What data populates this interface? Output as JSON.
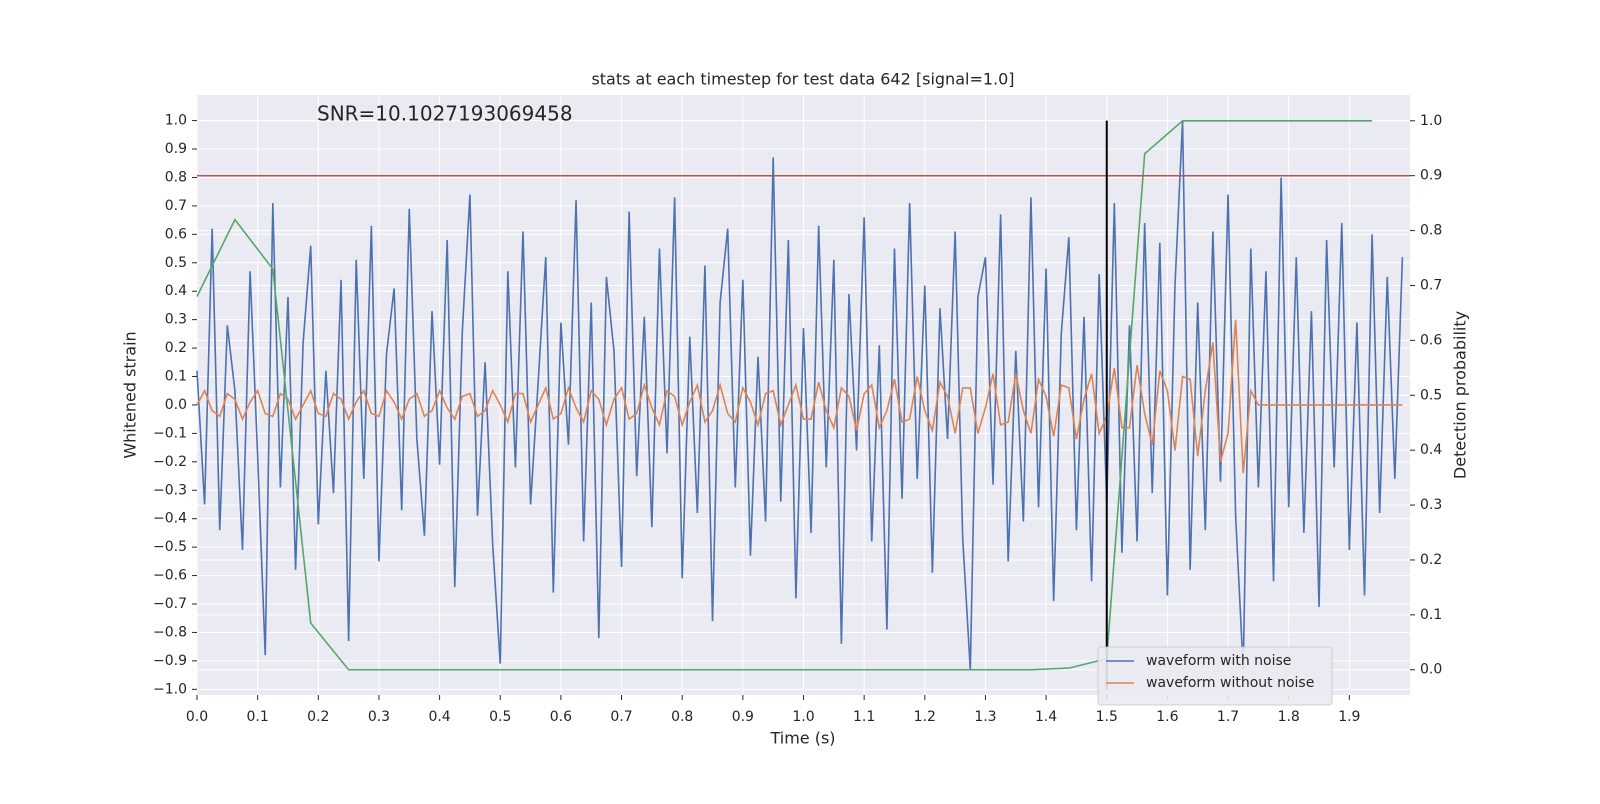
{
  "chart_data": {
    "type": "line",
    "title": "stats at each timestep for test data 642 [signal=1.0]",
    "annotation": "SNR=10.1027193069458",
    "xlabel": "Time (s)",
    "ylabel": "Whitened strain",
    "y2label": "Detection probability",
    "xlim": [
      0,
      2.0
    ],
    "ylim": [
      -1.02,
      1.09
    ],
    "y2lim": [
      -0.046,
      1.047
    ],
    "xticks": [
      {
        "value": 0,
        "label": "0.0"
      },
      0.1,
      0.2,
      0.3,
      0.4,
      0.5,
      0.6,
      0.7,
      0.8,
      0.9,
      {
        "value": 1,
        "label": "1.0"
      },
      1.1,
      1.2,
      1.3,
      1.4,
      1.5,
      1.6,
      1.7,
      1.8,
      1.9
    ],
    "yticks": [
      {
        "value": -1,
        "label": "−1.0"
      },
      {
        "value": -0.9,
        "label": "−0.9"
      },
      {
        "value": -0.8,
        "label": "−0.8"
      },
      {
        "value": -0.7,
        "label": "−0.7"
      },
      {
        "value": -0.6,
        "label": "−0.6"
      },
      {
        "value": -0.5,
        "label": "−0.5"
      },
      {
        "value": -0.4,
        "label": "−0.4"
      },
      {
        "value": -0.3,
        "label": "−0.3"
      },
      {
        "value": -0.2,
        "label": "−0.2"
      },
      {
        "value": -0.1,
        "label": "−0.1"
      },
      {
        "value": 0,
        "label": "0.0"
      },
      0.1,
      0.2,
      0.3,
      0.4,
      0.5,
      0.6,
      0.7,
      0.8,
      0.9,
      {
        "value": 1,
        "label": "1.0"
      }
    ],
    "y2ticks": [
      {
        "value": 0,
        "label": "0.0"
      },
      0.1,
      0.2,
      0.3,
      0.4,
      0.5,
      0.6,
      0.7,
      0.8,
      0.9,
      {
        "value": 1,
        "label": "1.0"
      }
    ],
    "grid": true,
    "legend": "lower right",
    "threshold": {
      "value": 0.9,
      "axis": "y2",
      "color": "#c44e52"
    },
    "vline": {
      "x": 1.5,
      "ymin": -1,
      "ymax": 1,
      "color": "#000000"
    },
    "x": [
      0,
      0.0125,
      0.025,
      0.0375,
      0.05,
      0.0625,
      0.075,
      0.0875,
      0.1,
      0.1125,
      0.125,
      0.1375,
      0.15,
      0.1625,
      0.175,
      0.1875,
      0.2,
      0.2125,
      0.225,
      0.2375,
      0.25,
      0.2625,
      0.275,
      0.2875,
      0.3,
      0.3125,
      0.325,
      0.3375,
      0.35,
      0.3625,
      0.375,
      0.3875,
      0.4,
      0.4125,
      0.425,
      0.4375,
      0.45,
      0.4625,
      0.475,
      0.4875,
      0.5,
      0.5125,
      0.525,
      0.5375,
      0.55,
      0.5625,
      0.575,
      0.5875,
      0.6,
      0.6125,
      0.625,
      0.6375,
      0.65,
      0.6625,
      0.675,
      0.6875,
      0.7,
      0.7125,
      0.725,
      0.7375,
      0.75,
      0.7625,
      0.775,
      0.7875,
      0.8,
      0.8125,
      0.825,
      0.8375,
      0.85,
      0.8625,
      0.875,
      0.8875,
      0.9,
      0.9125,
      0.925,
      0.9375,
      0.95,
      0.9625,
      0.975,
      0.9875,
      1,
      1.0125,
      1.025,
      1.0375,
      1.05,
      1.0625,
      1.075,
      1.0875,
      1.1,
      1.1125,
      1.125,
      1.1375,
      1.15,
      1.1625,
      1.175,
      1.1875,
      1.2,
      1.2125,
      1.225,
      1.2375,
      1.25,
      1.2625,
      1.275,
      1.2875,
      1.3,
      1.3125,
      1.325,
      1.3375,
      1.35,
      1.3625,
      1.375,
      1.3875,
      1.4,
      1.4125,
      1.425,
      1.4375,
      1.45,
      1.4625,
      1.475,
      1.4875,
      1.5,
      1.5125,
      1.525,
      1.5375,
      1.55,
      1.5625,
      1.575,
      1.5875,
      1.6,
      1.6125,
      1.625,
      1.6375,
      1.65,
      1.6625,
      1.675,
      1.6875,
      1.7,
      1.7125,
      1.725,
      1.7375,
      1.75,
      1.7625,
      1.775,
      1.7875,
      1.8,
      1.8125,
      1.825,
      1.8375,
      1.85,
      1.8625,
      1.875,
      1.8875,
      1.9,
      1.9125,
      1.925,
      1.9375,
      1.95,
      1.9625,
      1.975,
      1.9875
    ],
    "series": [
      {
        "name": "waveform with noise",
        "color": "#4c72b0",
        "values": [
          0.12,
          -0.35,
          0.62,
          -0.44,
          0.28,
          0.05,
          -0.51,
          0.47,
          -0.18,
          -0.88,
          0.71,
          -0.29,
          0.38,
          -0.58,
          0.22,
          0.56,
          -0.42,
          0.12,
          -0.31,
          0.44,
          -0.83,
          0.51,
          -0.26,
          0.63,
          -0.55,
          0.18,
          0.41,
          -0.37,
          0.69,
          -0.12,
          -0.46,
          0.33,
          -0.21,
          0.58,
          -0.64,
          0.26,
          0.74,
          -0.39,
          0.15,
          -0.49,
          -0.91,
          0.47,
          -0.22,
          0.61,
          -0.35,
          0.08,
          0.52,
          -0.66,
          0.29,
          -0.14,
          0.72,
          -0.48,
          0.36,
          -0.82,
          0.45,
          0.19,
          -0.57,
          0.68,
          -0.25,
          0.31,
          -0.43,
          0.55,
          -0.17,
          0.73,
          -0.61,
          0.24,
          -0.38,
          0.49,
          -0.76,
          0.36,
          0.62,
          -0.29,
          0.44,
          -0.53,
          0.17,
          -0.41,
          0.87,
          -0.34,
          0.58,
          -0.68,
          0.27,
          -0.45,
          0.63,
          -0.22,
          0.51,
          -0.84,
          0.39,
          -0.16,
          0.66,
          -0.48,
          0.21,
          -0.79,
          0.55,
          -0.33,
          0.71,
          -0.26,
          0.42,
          -0.59,
          0.34,
          -0.12,
          0.61,
          -0.47,
          -0.93,
          0.38,
          0.52,
          -0.28,
          0.67,
          -0.55,
          0.19,
          -0.41,
          0.73,
          -0.36,
          0.48,
          -0.69,
          0.25,
          0.59,
          -0.44,
          0.31,
          -0.62,
          0.46,
          -0.35,
          0.71,
          -0.52,
          0.28,
          -0.48,
          0.64,
          -0.31,
          0.57,
          -0.67,
          0.42,
          1.0,
          -0.58,
          0.36,
          -0.44,
          0.61,
          -0.27,
          0.74,
          -0.39,
          -0.93,
          0.55,
          -0.29,
          0.47,
          -0.62,
          0.8,
          -0.36,
          0.52,
          -0.45,
          0.33,
          -0.71,
          0.58,
          -0.22,
          0.64,
          -0.51,
          0.29,
          -0.67,
          0.6,
          -0.38,
          0.45,
          -0.26,
          0.52
        ]
      },
      {
        "name": "waveform without noise",
        "color": "#dd8452",
        "values": [
          0.0,
          0.05,
          -0.02,
          -0.04,
          0.04,
          0.02,
          -0.05,
          0.01,
          0.05,
          -0.03,
          -0.04,
          0.04,
          0.02,
          -0.05,
          0.0,
          0.05,
          -0.03,
          -0.04,
          0.04,
          0.02,
          -0.05,
          0.01,
          0.05,
          -0.03,
          -0.04,
          0.05,
          0.01,
          -0.05,
          0.02,
          0.04,
          -0.04,
          -0.02,
          0.05,
          -0.01,
          -0.05,
          0.03,
          0.04,
          -0.04,
          -0.02,
          0.05,
          0.0,
          -0.06,
          0.04,
          0.04,
          -0.06,
          0.0,
          0.06,
          -0.05,
          -0.03,
          0.06,
          -0.01,
          -0.06,
          0.05,
          0.02,
          -0.07,
          0.02,
          0.06,
          -0.05,
          -0.03,
          0.07,
          -0.01,
          -0.07,
          0.05,
          0.03,
          -0.07,
          0.01,
          0.07,
          -0.06,
          -0.02,
          0.07,
          -0.03,
          -0.06,
          0.06,
          0.01,
          -0.07,
          0.04,
          0.05,
          -0.07,
          0.0,
          0.07,
          -0.05,
          -0.05,
          0.08,
          -0.02,
          -0.08,
          0.06,
          0.03,
          -0.09,
          0.04,
          0.07,
          -0.08,
          -0.02,
          0.09,
          -0.06,
          -0.05,
          0.1,
          -0.02,
          -0.09,
          0.08,
          0.03,
          -0.1,
          0.06,
          0.06,
          -0.1,
          -0.01,
          0.11,
          -0.07,
          -0.06,
          0.11,
          -0.02,
          -0.1,
          0.09,
          0.03,
          -0.11,
          0.07,
          0.06,
          -0.12,
          0.02,
          0.11,
          -0.1,
          -0.04,
          0.13,
          -0.08,
          -0.08,
          0.14,
          -0.03,
          -0.14,
          0.12,
          0.05,
          -0.16,
          0.1,
          0.09,
          -0.18,
          0.05,
          0.22,
          -0.2,
          -0.1,
          0.3,
          -0.24,
          0.05,
          0,
          0,
          0,
          0,
          0,
          0,
          0,
          0,
          0,
          0,
          0,
          0,
          0,
          0,
          0,
          0,
          0,
          0,
          0,
          0
        ]
      },
      {
        "color": "#55a868",
        "axis": "y2",
        "x": [
          0,
          0.0625,
          0.125,
          0.1875,
          0.25,
          0.3125,
          0.375,
          0.4375,
          0.5,
          0.5625,
          0.625,
          0.6875,
          0.75,
          0.8125,
          0.875,
          0.9375,
          1,
          1.0625,
          1.125,
          1.1875,
          1.25,
          1.3125,
          1.375,
          1.4375,
          1.5,
          1.5625,
          1.625,
          1.6875,
          1.75,
          1.8125,
          1.875,
          1.9375
        ],
        "values": [
          0.68,
          0.82,
          0.73,
          0.085,
          0,
          0,
          0,
          0,
          0,
          0,
          0,
          0,
          0,
          0,
          0,
          0,
          0,
          0,
          0,
          0,
          0,
          0,
          0,
          0.003,
          0.02,
          0.94,
          1.0,
          1.0,
          1.0,
          1.0,
          1.0,
          1.0
        ]
      }
    ]
  }
}
